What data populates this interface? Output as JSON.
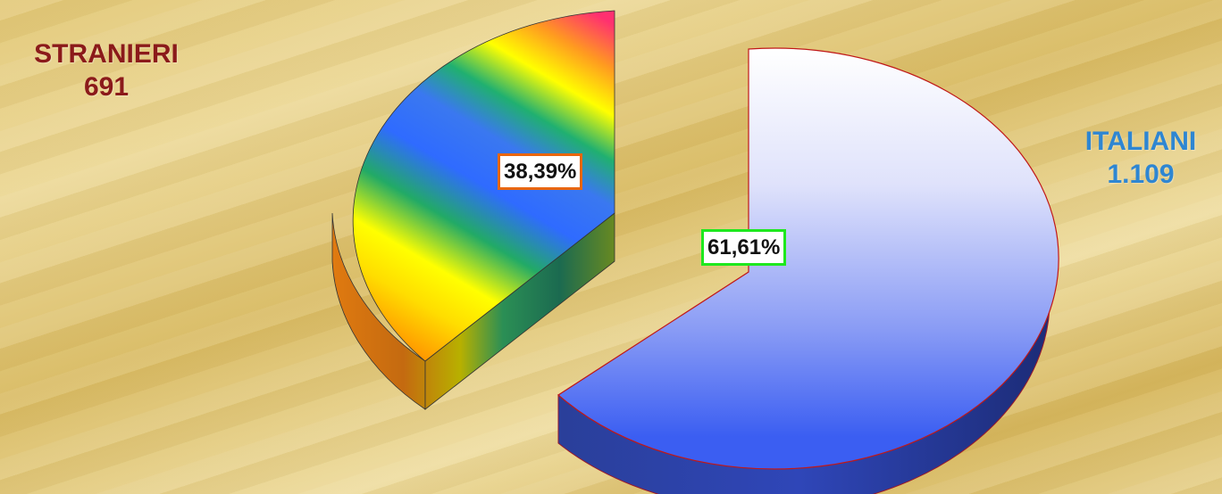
{
  "chart_data": {
    "type": "pie",
    "slices": [
      {
        "name": "STRANIERI",
        "count": "691",
        "percent_label": "38,39%",
        "value": 38.39
      },
      {
        "name": "ITALIANI",
        "count": "1.109",
        "percent_label": "61,61%",
        "value": 61.61
      }
    ]
  },
  "colors": {
    "stranieri_name": "#8b1a1a",
    "italiani_name": "#2e86d2",
    "stranieri_box_border": "#e8660e",
    "italiani_box_border": "#1ee81e",
    "italiani_top_light": "#ffffff",
    "italiani_top_dark": "#3e62f2",
    "italiani_edge": "#c01818"
  }
}
